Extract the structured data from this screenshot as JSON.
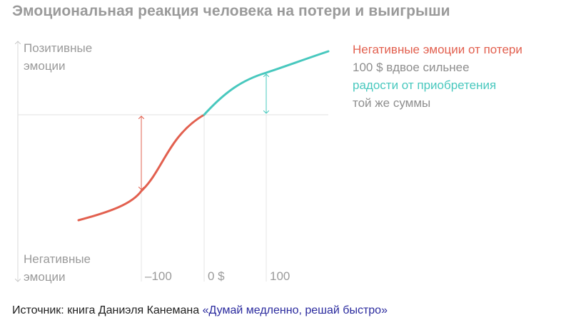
{
  "title": "Эмоциональная реакция человека на потери и выигрыши",
  "axis": {
    "positive_label_line1": "Позитивные",
    "positive_label_line2": "эмоции",
    "negative_label_line1": "Негативные",
    "negative_label_line2": "эмоции",
    "x_ticks": [
      "–100",
      "0 $",
      "100"
    ]
  },
  "legend": {
    "line1": "Негативные эмоции от потери",
    "line2": "100 $ вдвое сильнее",
    "line3": "радости от приобретения",
    "line4": "той же суммы"
  },
  "colors": {
    "loss": "#e2604f",
    "gain": "#48c8be",
    "axis": "#d8d8d8",
    "text": "#9a9a9a"
  },
  "source": {
    "prefix": "Источник: книга Даниэля Канемана ",
    "book": "«Думай медленно, решай быстро»"
  }
}
